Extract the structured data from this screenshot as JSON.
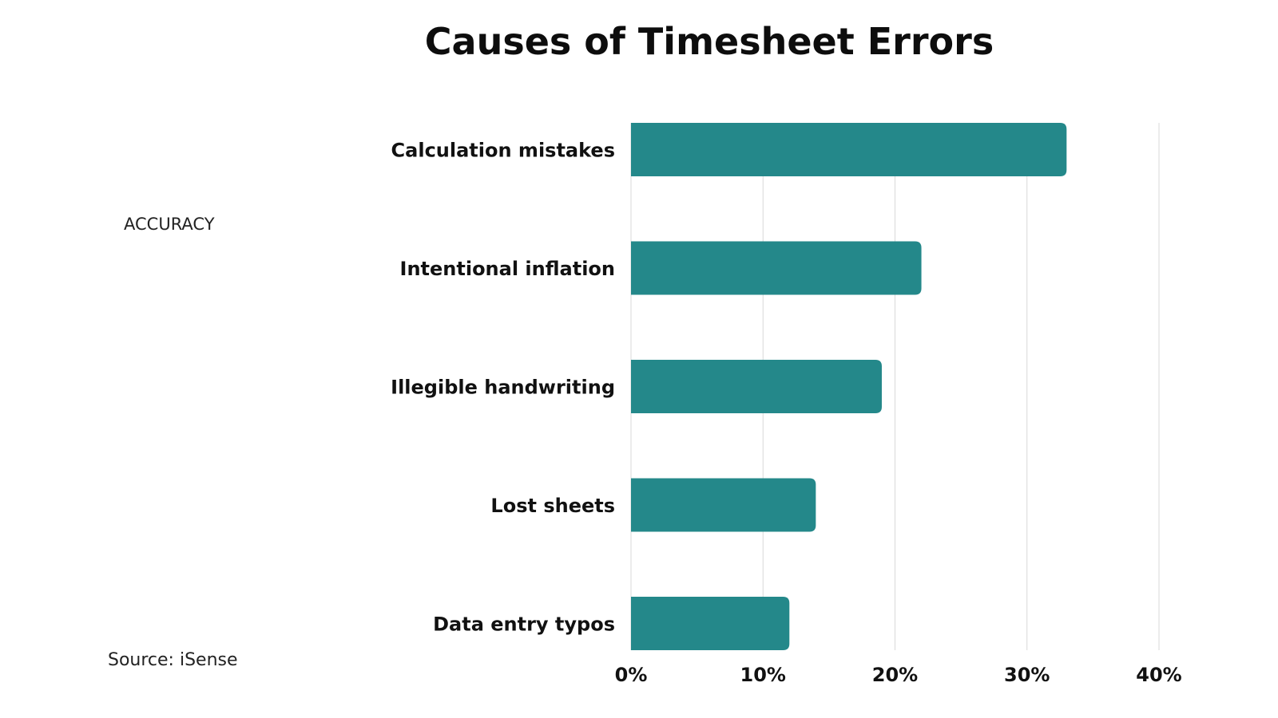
{
  "header": {
    "title": "Causes of Timesheet Errors",
    "side_label": "ACCURACY",
    "source": "Source: iSense"
  },
  "colors": {
    "bar": "#24888A",
    "grid": "#D9D9D9",
    "text": "#111111"
  },
  "chart_data": {
    "type": "bar",
    "orientation": "horizontal",
    "title": "Causes of Timesheet Errors",
    "categories": [
      "Calculation mistakes",
      "Intentional inflation",
      "Illegible handwriting",
      "Lost sheets",
      "Data entry typos"
    ],
    "values": [
      33,
      22,
      19,
      14,
      12
    ],
    "unit": "%",
    "xlim": [
      0,
      40
    ],
    "xticks": [
      0,
      10,
      20,
      30,
      40
    ],
    "xtick_labels": [
      "0%",
      "10%",
      "20%",
      "30%",
      "40%"
    ],
    "grid": true,
    "legend": false
  }
}
